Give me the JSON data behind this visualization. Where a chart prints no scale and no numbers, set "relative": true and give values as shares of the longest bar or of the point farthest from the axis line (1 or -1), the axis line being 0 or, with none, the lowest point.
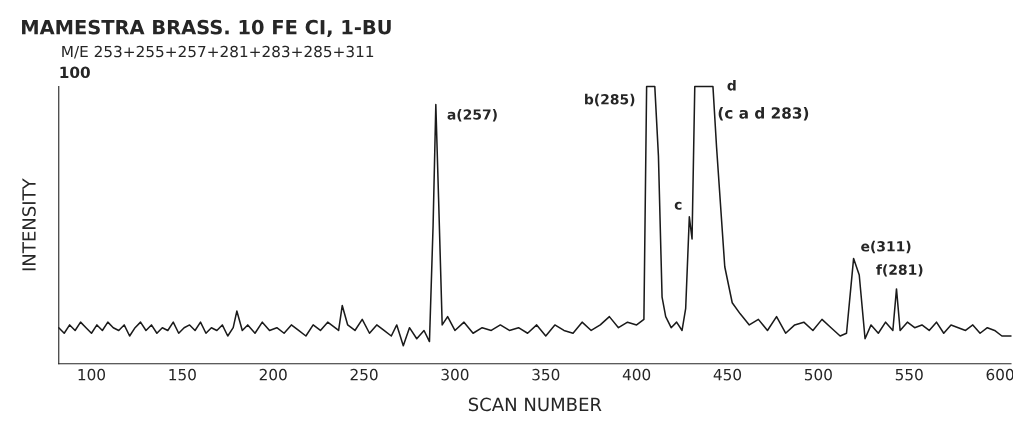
{
  "chart_data": {
    "type": "line",
    "title": "MAMESTRA BRASS. 10 FE CI, 1-BU",
    "subtitle": "M/E 253+255+257+281+283+285+311",
    "xlabel": "SCAN NUMBER",
    "ylabel": "INTENSITY",
    "relative": true,
    "xlim": [
      82,
      606
    ],
    "xticks": [
      100,
      150,
      200,
      250,
      300,
      350,
      400,
      450,
      500,
      550,
      600
    ],
    "series": [
      {
        "color": "#1a1a1a",
        "x": [
          82,
          85,
          88,
          91,
          94,
          97,
          100,
          103,
          106,
          109,
          112,
          115,
          118,
          121,
          124,
          127,
          130,
          133,
          136,
          139,
          142,
          145,
          148,
          151,
          154,
          157,
          160,
          163,
          166,
          169,
          172,
          175,
          178,
          180,
          183,
          186,
          190,
          194,
          198,
          202,
          206,
          210,
          214,
          218,
          222,
          226,
          230,
          234,
          236,
          238,
          241,
          245,
          249,
          253,
          257,
          261,
          265,
          268,
          271.6,
          275,
          279,
          283,
          286,
          288,
          289.5,
          291,
          293,
          296,
          300,
          305,
          310,
          315,
          320,
          325,
          330,
          335,
          340,
          345,
          350,
          355,
          360,
          365,
          370,
          375,
          380,
          385,
          390,
          395,
          400,
          404,
          405.5,
          406.5,
          410,
          412,
          414,
          416,
          419,
          422,
          425,
          427,
          429,
          430.5,
          432,
          442,
          444,
          448.5,
          452.6,
          457,
          462,
          467,
          472,
          477,
          482,
          487,
          492,
          497,
          502,
          507,
          512,
          515.5,
          519.4,
          522.5,
          525.7,
          529,
          533,
          537,
          541,
          543,
          545,
          549,
          553,
          557,
          561,
          565,
          569,
          573,
          577,
          581,
          585,
          589,
          593,
          597,
          601,
          606
        ],
        "values": [
          0.13,
          0.11,
          0.14,
          0.12,
          0.15,
          0.13,
          0.11,
          0.14,
          0.12,
          0.15,
          0.13,
          0.12,
          0.14,
          0.1,
          0.13,
          0.15,
          0.12,
          0.14,
          0.11,
          0.13,
          0.12,
          0.15,
          0.11,
          0.13,
          0.14,
          0.12,
          0.15,
          0.11,
          0.13,
          0.12,
          0.14,
          0.1,
          0.13,
          0.19,
          0.12,
          0.14,
          0.11,
          0.15,
          0.12,
          0.13,
          0.11,
          0.14,
          0.12,
          0.1,
          0.14,
          0.12,
          0.15,
          0.13,
          0.12,
          0.21,
          0.14,
          0.12,
          0.16,
          0.11,
          0.14,
          0.12,
          0.1,
          0.14,
          0.065,
          0.13,
          0.09,
          0.12,
          0.08,
          0.5,
          0.935,
          0.6,
          0.14,
          0.17,
          0.12,
          0.15,
          0.11,
          0.13,
          0.12,
          0.14,
          0.12,
          0.13,
          0.11,
          0.14,
          0.1,
          0.14,
          0.12,
          0.11,
          0.15,
          0.12,
          0.14,
          0.17,
          0.13,
          0.15,
          0.14,
          0.16,
          1.0,
          1.0,
          1.0,
          0.75,
          0.24,
          0.17,
          0.13,
          0.15,
          0.12,
          0.2,
          0.53,
          0.45,
          1.0,
          1.0,
          0.78,
          0.35,
          0.22,
          0.18,
          0.14,
          0.16,
          0.12,
          0.17,
          0.11,
          0.14,
          0.15,
          0.12,
          0.16,
          0.13,
          0.1,
          0.11,
          0.38,
          0.32,
          0.09,
          0.14,
          0.11,
          0.15,
          0.12,
          0.27,
          0.12,
          0.15,
          0.13,
          0.14,
          0.12,
          0.15,
          0.11,
          0.14,
          0.13,
          0.12,
          0.14,
          0.11,
          0.13,
          0.12,
          0.1,
          0.1
        ]
      }
    ],
    "annotations": [
      "100",
      {
        "text": "a(257)",
        "x": 289.5,
        "y": 0.935
      },
      {
        "text": "b(285)",
        "x": 405.5,
        "y": 1.0
      },
      {
        "text": "c",
        "x": 429,
        "y": 0.53
      },
      {
        "text": "d",
        "x": 442,
        "y": 1.0
      },
      "(c a d 283)",
      {
        "text": "e(311)",
        "x": 519.4,
        "y": 0.38
      },
      {
        "text": "f(281)",
        "x": 522.5,
        "y": 0.32
      }
    ]
  }
}
